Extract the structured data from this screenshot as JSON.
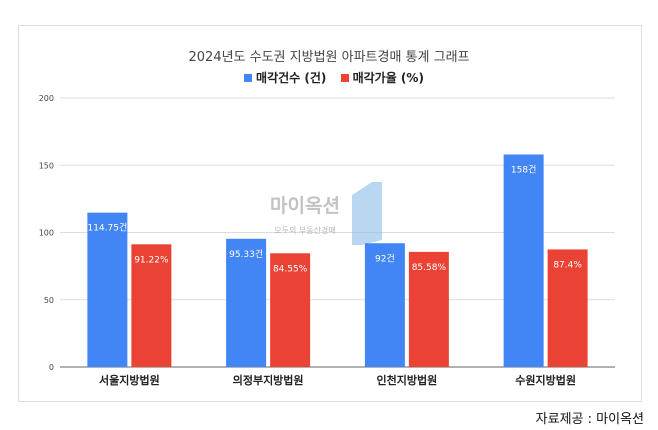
{
  "chart_data": {
    "type": "bar",
    "title": "2024년도 수도권 지방법원 아파트경매 통계 그래프",
    "categories": [
      "서울지방법원",
      "의정부지방법원",
      "인천지방법원",
      "수원지방법원"
    ],
    "series": [
      {
        "name": "매각건수 (건)",
        "color": "#4285f4",
        "values": [
          114.75,
          95.33,
          92,
          158
        ],
        "labels": [
          "114.75건",
          "95.33건",
          "92건",
          "158건"
        ]
      },
      {
        "name": "매각가율 (%)",
        "color": "#ea4335",
        "values": [
          91.22,
          84.55,
          85.58,
          87.4
        ],
        "labels": [
          "91.22%",
          "84.55%",
          "85.58%",
          "87.4%"
        ]
      }
    ],
    "ylim": [
      0,
      200
    ],
    "yticks": [
      0,
      50,
      100,
      150,
      200
    ],
    "grid": true,
    "legend": "top"
  },
  "watermark": {
    "logo": "마이옥션",
    "tagline": "모두의 부동산경매"
  },
  "source": "자료제공 : 마이옥션"
}
